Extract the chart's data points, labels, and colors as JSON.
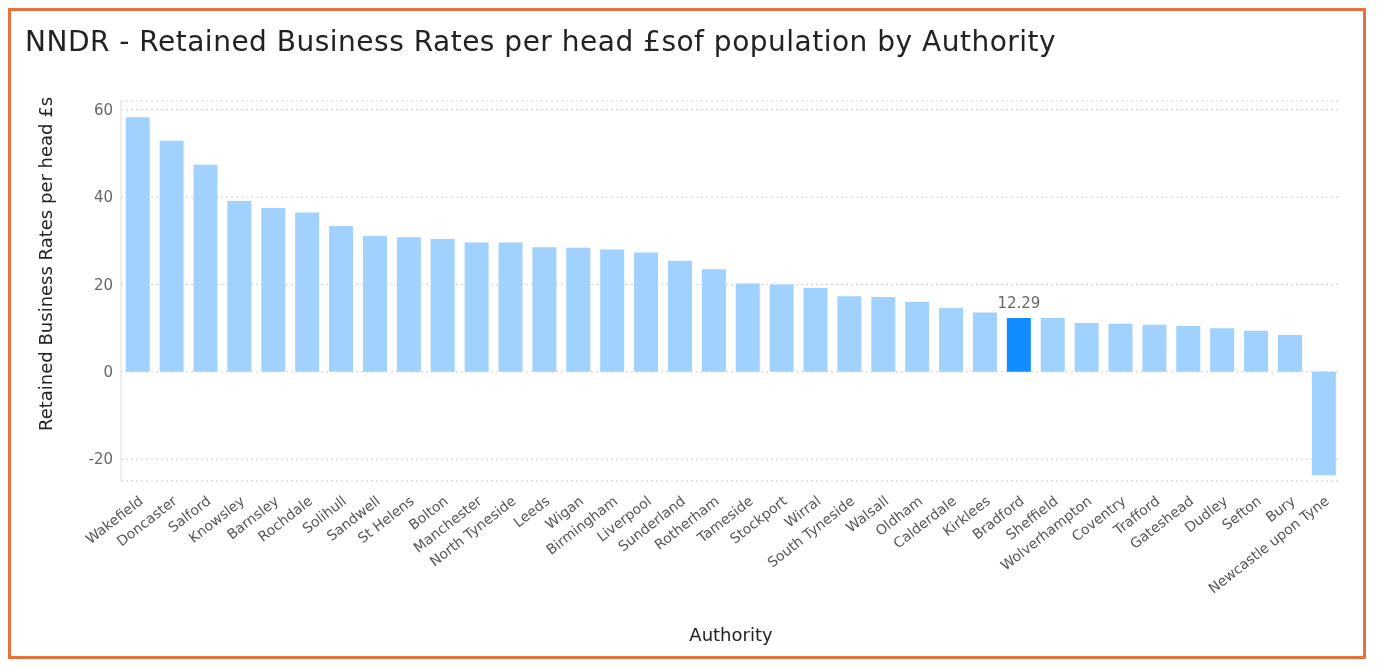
{
  "chart_data": {
    "type": "bar",
    "title": "NNDR - Retained Business Rates per head £sof population by Authority",
    "xlabel": "Authority",
    "ylabel": "Retained Business Rates per head £s",
    "categories": [
      "Wakefield",
      "Doncaster",
      "Salford",
      "Knowsley",
      "Barnsley",
      "Rochdale",
      "Solihull",
      "Sandwell",
      "St Helens",
      "Bolton",
      "Manchester",
      "North Tyneside",
      "Leeds",
      "Wigan",
      "Birmingham",
      "Liverpool",
      "Sunderland",
      "Rotherham",
      "Tameside",
      "Stockport",
      "Wirral",
      "South Tyneside",
      "Walsall",
      "Oldham",
      "Calderdale",
      "Kirklees",
      "Bradford",
      "Sheffield",
      "Wolverhampton",
      "Coventry",
      "Trafford",
      "Gateshead",
      "Dudley",
      "Sefton",
      "Bury",
      "Newcastle upon Tyne"
    ],
    "values": [
      58.3,
      52.9,
      47.4,
      39.1,
      37.5,
      36.5,
      33.4,
      31.1,
      30.8,
      30.4,
      29.6,
      29.6,
      28.5,
      28.4,
      28.0,
      27.3,
      25.4,
      23.5,
      20.2,
      20.0,
      19.2,
      17.3,
      17.1,
      16.0,
      14.6,
      13.6,
      12.29,
      12.3,
      11.2,
      11.0,
      10.8,
      10.5,
      10.0,
      9.4,
      8.4,
      -23.7
    ],
    "colors": [
      "#a0d1ff",
      "#a0d1ff",
      "#a0d1ff",
      "#a0d1ff",
      "#a0d1ff",
      "#a0d1ff",
      "#a0d1ff",
      "#a0d1ff",
      "#a0d1ff",
      "#a0d1ff",
      "#a0d1ff",
      "#a0d1ff",
      "#a0d1ff",
      "#a0d1ff",
      "#a0d1ff",
      "#a0d1ff",
      "#a0d1ff",
      "#a0d1ff",
      "#a0d1ff",
      "#a0d1ff",
      "#a0d1ff",
      "#a0d1ff",
      "#a0d1ff",
      "#a0d1ff",
      "#a0d1ff",
      "#a0d1ff",
      "#118dff",
      "#a0d1ff",
      "#a0d1ff",
      "#a0d1ff",
      "#a0d1ff",
      "#a0d1ff",
      "#a0d1ff",
      "#a0d1ff",
      "#a0d1ff",
      "#a0d1ff"
    ],
    "value_labels": [
      null,
      null,
      null,
      null,
      null,
      null,
      null,
      null,
      null,
      null,
      null,
      null,
      null,
      null,
      null,
      null,
      null,
      null,
      null,
      null,
      null,
      null,
      null,
      null,
      null,
      null,
      "12.29",
      null,
      null,
      null,
      null,
      null,
      null,
      null,
      null,
      null
    ],
    "ylim": [
      -25,
      62
    ],
    "yticks": [
      -20,
      0,
      20,
      40,
      60
    ],
    "grid": "y"
  }
}
